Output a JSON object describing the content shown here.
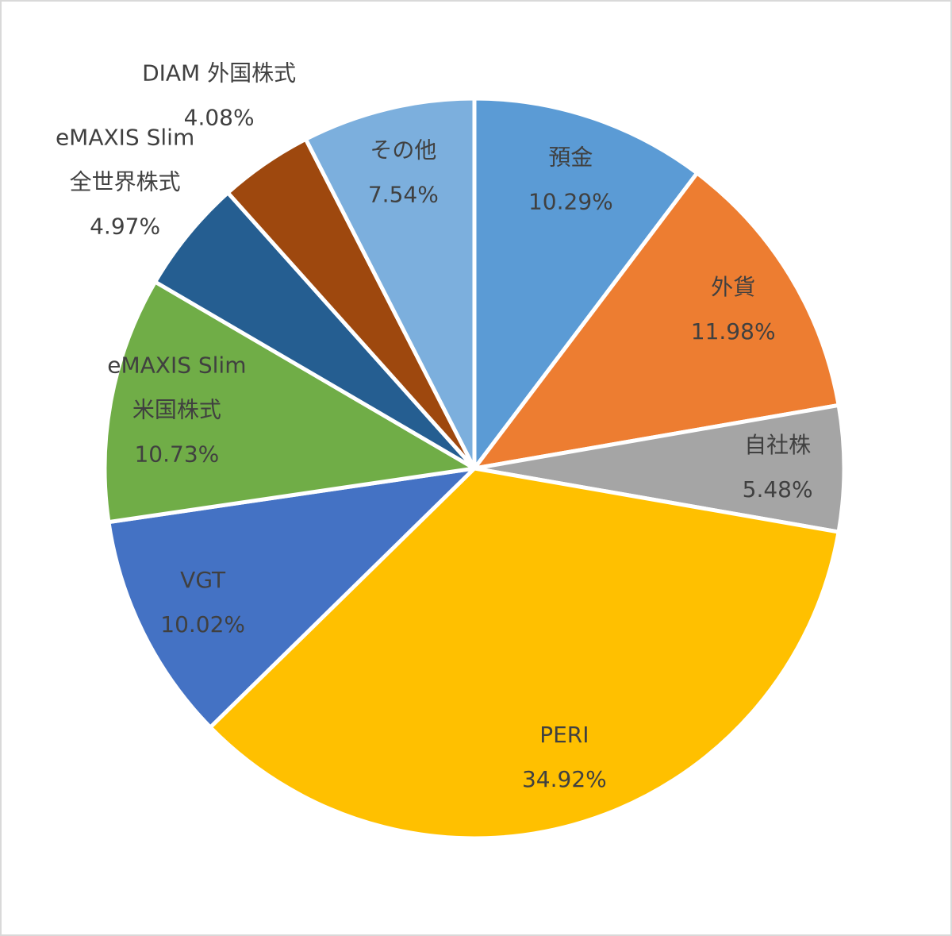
{
  "chart_data": {
    "type": "pie",
    "categories": [
      [
        "預金"
      ],
      [
        "外貨"
      ],
      [
        "自社株"
      ],
      [
        "PERI"
      ],
      [
        "VGT"
      ],
      [
        "eMAXIS Slim",
        "米国株式"
      ],
      [
        "eMAXIS Slim",
        "全世界株式"
      ],
      [
        "DIAM 外国株式"
      ],
      [
        "その他"
      ]
    ],
    "values": [
      10.29,
      11.98,
      5.48,
      34.92,
      10.02,
      10.73,
      4.97,
      4.08,
      7.54
    ],
    "value_labels": [
      "10.29%",
      "11.98%",
      "5.48%",
      "34.92%",
      "10.02%",
      "10.73%",
      "4.97%",
      "4.08%",
      "7.54%"
    ],
    "colors": [
      "#5b9bd5",
      "#ed7d31",
      "#a5a5a5",
      "#ffc000",
      "#4472c4",
      "#70ad47",
      "#255e91",
      "#9e480e",
      "#7cafdd"
    ]
  }
}
